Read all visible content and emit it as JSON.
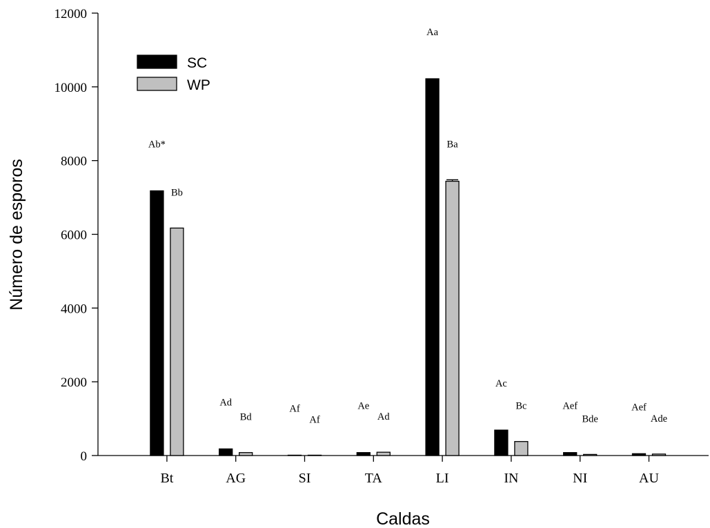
{
  "chart_data": {
    "type": "bar",
    "xlabel": "Caldas",
    "ylabel": "Número de esporos",
    "ylim": [
      0,
      12000
    ],
    "yticks": [
      0,
      2000,
      4000,
      6000,
      8000,
      10000,
      12000
    ],
    "grid": false,
    "legend_position": "top-left",
    "categories": [
      "Bt",
      "AG",
      "SI",
      "TA",
      "LI",
      "IN",
      "NI",
      "AU"
    ],
    "series": [
      {
        "name": "SC",
        "color": "#000000",
        "values": [
          7180,
          180,
          10,
          80,
          10220,
          690,
          80,
          50
        ],
        "errors": [
          0,
          0,
          0,
          0,
          0,
          0,
          0,
          0
        ],
        "labels": [
          "Ab*",
          "Ad",
          "Af",
          "Ae",
          "Aa",
          "Ac",
          "Aef",
          "Aef"
        ]
      },
      {
        "name": "WP",
        "color": "#c0c0c0",
        "values": [
          6170,
          80,
          10,
          90,
          7440,
          380,
          30,
          40
        ],
        "errors": [
          0,
          0,
          0,
          0,
          40,
          0,
          0,
          0
        ],
        "labels": [
          "Bb",
          "Bd",
          "Af",
          "Ad",
          "Ba",
          "Bc",
          "Bde",
          "Ade"
        ]
      }
    ]
  }
}
